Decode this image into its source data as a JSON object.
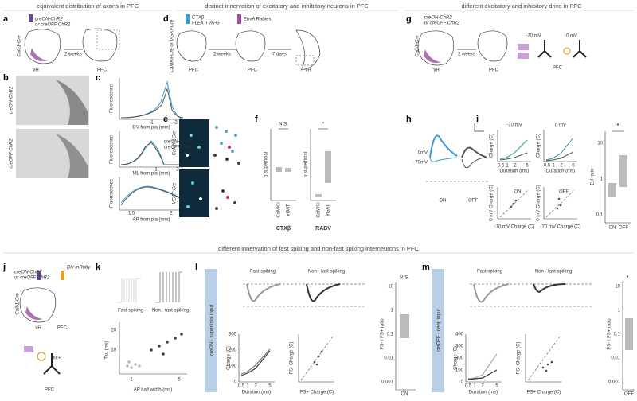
{
  "header": {
    "section_top_left": "equivalent distribution of axons in PFC",
    "section_top_middle": "distinct innervation of excitatory and inhibitory neurons in PFC",
    "section_top_right": "different excitatory and inhibitory drive in PFC",
    "section_bottom": "different innervation of fast spiking and non-fast spiking interneurons in PFC"
  },
  "panels": {
    "a": {
      "label": "a",
      "virus": "creON-ChR2",
      "virus_alt": "or creOFF ChR2",
      "mouse": "Calb1-Cre",
      "source": "vH",
      "wait": "2 weeks",
      "target": "PFC"
    },
    "b": {
      "label": "b",
      "row1": "creON-ChR2",
      "row2": "creOFF ChR2"
    },
    "c": {
      "label": "c",
      "ylabel": "Fluorescence",
      "xlabel_dv": "DV from pia (mm)",
      "xlabel_ml": "ML from pia (mm)",
      "xlabel_ap": "AP from pia (mm)",
      "ticks_dv": [
        "-1",
        "-2"
      ],
      "ticks_ml": [
        "-1",
        "-2"
      ],
      "ticks_ap": [
        "1.5",
        "2"
      ],
      "legend": [
        "creON-ChR2",
        "creOFF ChR2"
      ]
    },
    "d": {
      "label": "d",
      "mouse": "CaMKii-Cre or VGAT-Cre",
      "tracer": "CTXβ",
      "helper": "FLEX TVA-G",
      "rabies": "EnvA Rabies",
      "site1": "PFC",
      "site2": "PFC",
      "site3": "vH",
      "wait1": "2 weeks",
      "wait2": "7 days"
    },
    "e": {
      "label": "e",
      "row1": "CaMKii-Cre",
      "row2": "VGAT-Cre"
    },
    "f": {
      "label": "f",
      "sig_left": "N.S.",
      "sig_right": "*",
      "ylabel": "p superficial",
      "groups": [
        "CaMKii",
        "vGAT"
      ],
      "title_left": "CTXβ",
      "title_right": "RABV"
    },
    "g": {
      "label": "g",
      "virus": "creON-ChR2",
      "virus_alt": "or creOFF ChR2",
      "mouse": "Calb1-Cre",
      "source": "vH",
      "wait": "2 weeks",
      "target": "PFC",
      "hold1": "-70 mV",
      "hold2": "0 mV",
      "cell_site": "PFC"
    },
    "h": {
      "label": "h",
      "hold1": "0mV",
      "hold2": "-70mV",
      "cond1": "ON",
      "cond2": "OFF"
    },
    "i": {
      "label": "i",
      "title1": "-70 mV",
      "title2": "0 mV",
      "ylabel": "Charge (C)",
      "xlabel": "Duration (ms)",
      "xticks": [
        "0.5",
        "1",
        "2",
        "5"
      ],
      "cond1": "ON",
      "cond2": "OFF",
      "scatter_ylabel": "0 mV Charge (C)",
      "scatter_xlabel": "-70 mV Charge (C)",
      "sig": "*",
      "ratio_label": "E:I ratio",
      "ratio_ticks": [
        "10",
        "1",
        "0.1"
      ]
    },
    "j": {
      "label": "j",
      "virus": "creON-ChR2",
      "virus_alt": "or creOFF ChR2",
      "reporter": "Dlx mRuby",
      "mouse": "Calb1-Cre",
      "source": "vH",
      "target": "PFC",
      "cell": "Dlx+",
      "cell_site": "PFC"
    },
    "k": {
      "label": "k",
      "trace1": "Fast spiking",
      "trace2": "Non - fast spiking",
      "ylabel": "Tau (ms)",
      "yticks": [
        "20",
        "10"
      ],
      "xlabel": "AP half width (ms)",
      "xticks": [
        "1",
        "5"
      ]
    },
    "l": {
      "label": "l",
      "side": "creON - superficial input",
      "trace1": "Fast spiking",
      "trace2": "Non - fast spiking",
      "sig": "N.S.",
      "ratio_label": "FS- / FS+ ratio",
      "ratio_ticks": [
        "10",
        "1",
        "0.1",
        "0.01",
        "0.001"
      ],
      "group": "ON",
      "ylabel": "Charge (C)",
      "yticks": [
        "300",
        "200",
        "100",
        "0"
      ],
      "xlabel": "Duration (ms)",
      "xticks": [
        "0.5",
        "1",
        "2",
        "5"
      ],
      "scatter_xlabel": "FS+ Charge (C)",
      "scatter_ylabel": "FS- Charge (C)"
    },
    "m": {
      "label": "m",
      "side": "creOFF - deep input",
      "trace1": "Fast spiking",
      "trace2": "Non - fast spiking",
      "sig": "*",
      "ratio_label": "FS- / FS+ ratio",
      "ratio_ticks": [
        "10",
        "1",
        "0.1",
        "0.01",
        "0.001"
      ],
      "group": "OFF",
      "ylabel": "Charge (C)",
      "yticks": [
        "400",
        "300",
        "200",
        "100",
        "0"
      ],
      "xlabel": "Duration (ms)",
      "xticks": [
        "0.5",
        "1",
        "2",
        "5"
      ],
      "scatter_xlabel": "FS+ Charge (C)",
      "scatter_ylabel": "FS- Charge (C)"
    }
  }
}
